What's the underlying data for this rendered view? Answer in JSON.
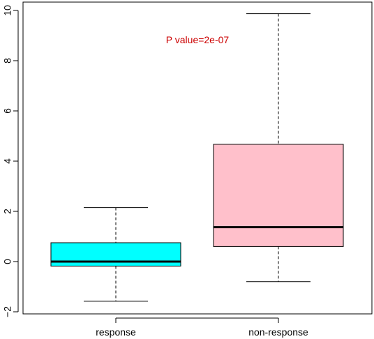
{
  "chart_data": {
    "type": "box",
    "title": "",
    "xlabel": "",
    "ylabel": "",
    "ylim": [
      -2,
      10
    ],
    "yticks": [
      -2,
      0,
      2,
      4,
      6,
      8,
      10
    ],
    "grid": false,
    "legend": "none",
    "annotation": {
      "text": "P value=2e-07",
      "color": "#cc0000"
    },
    "categories": [
      "response",
      "non-response"
    ],
    "boxes": [
      {
        "label": "response",
        "whisker_low": -1.58,
        "q1": -0.18,
        "median": 0.0,
        "q3": 0.75,
        "whisker_high": 2.15,
        "fill": "#00ffff"
      },
      {
        "label": "non-response",
        "whisker_low": -0.8,
        "q1": 0.6,
        "median": 1.37,
        "q3": 4.67,
        "whisker_high": 9.87,
        "fill": "#ffc0cb"
      }
    ]
  }
}
